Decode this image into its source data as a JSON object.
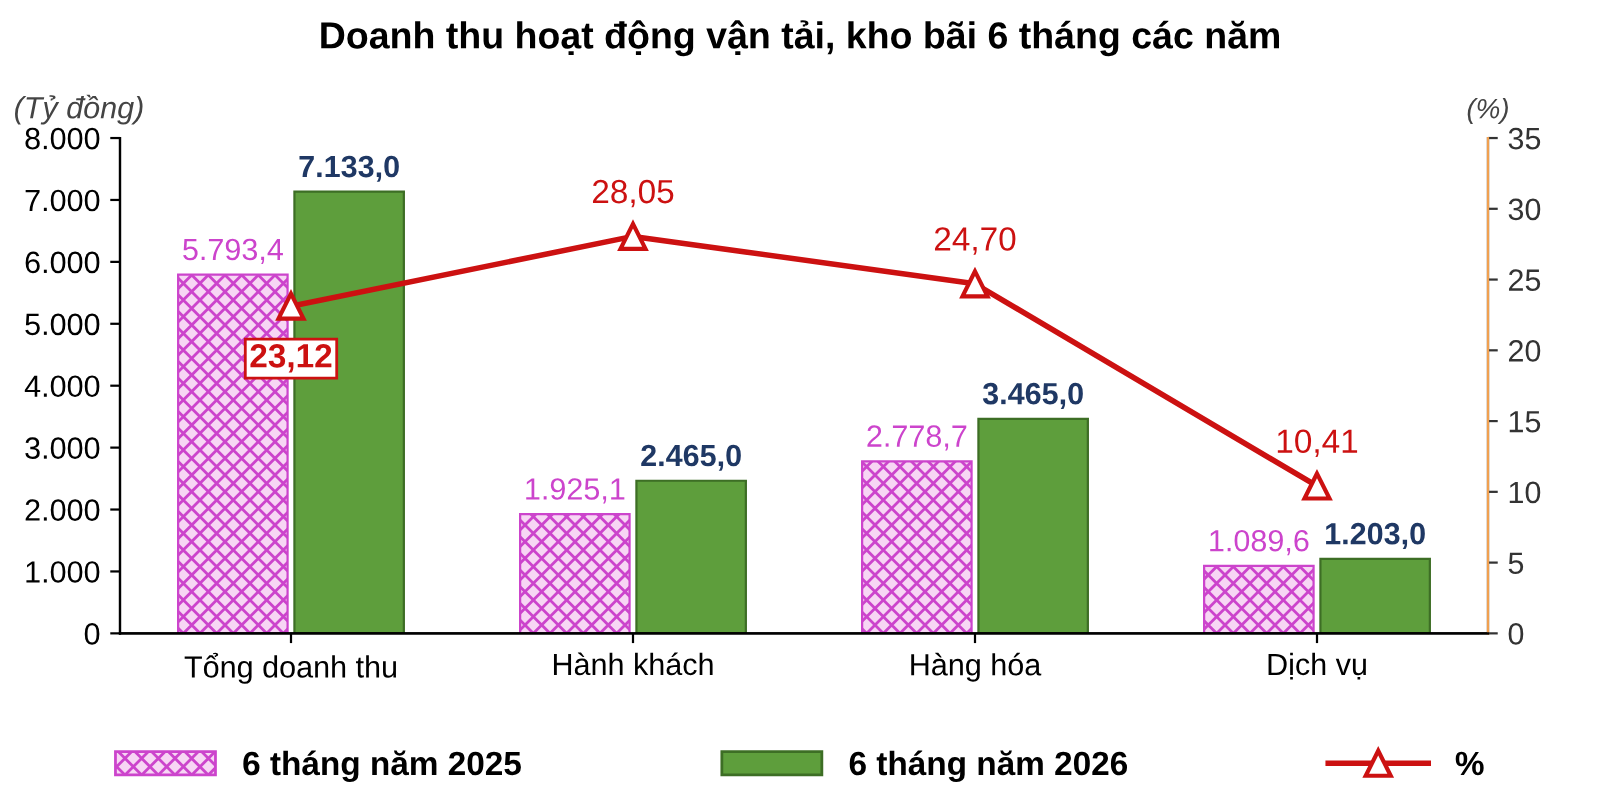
{
  "chart_data": {
    "type": "bar",
    "title": "Doanh thu hoạt động vận tải, kho bãi 6 tháng các năm",
    "ylabel": "(Tỷ đồng)",
    "y2label": "(%)",
    "categories": [
      "Tổng doanh thu",
      "Hành khách",
      "Hàng hóa",
      "Dịch vụ"
    ],
    "series": [
      {
        "name": "6 tháng năm 2025",
        "color": "#cc44cc",
        "values": [
          5793.4,
          1925.1,
          2778.7,
          1089.6
        ],
        "value_labels": [
          "5.793,4",
          "1.925,1",
          "2.778,7",
          "1.089,6"
        ]
      },
      {
        "name": "6 tháng năm 2026",
        "color": "#5e9e3c",
        "values": [
          7133.0,
          2465.0,
          3465.0,
          1203.0
        ],
        "value_labels": [
          "7.133,0",
          "2.465,0",
          "3.465,0",
          "1.203,0"
        ]
      },
      {
        "name": "%",
        "type": "line",
        "axis": "y2",
        "color": "#cc1111",
        "marker": "triangle",
        "values": [
          23.12,
          28.05,
          24.7,
          10.41
        ],
        "value_labels": [
          "23,12",
          "28,05",
          "24,70",
          "10,41"
        ]
      }
    ],
    "ylim": [
      0,
      8000
    ],
    "yticks": [
      0,
      {
        "value": 1000,
        "label": "1.000"
      },
      {
        "value": 2000,
        "label": "2.000"
      },
      {
        "value": 3000,
        "label": "3.000"
      },
      {
        "value": 4000,
        "label": "4.000"
      },
      {
        "value": 5000,
        "label": "5.000"
      },
      {
        "value": 6000,
        "label": "6.000"
      },
      {
        "value": 7000,
        "label": "7.000"
      },
      {
        "value": 8000,
        "label": "8.000"
      }
    ],
    "y2lim": [
      0,
      35
    ],
    "y2ticks": [
      0,
      5,
      10,
      15,
      20,
      25,
      30,
      35
    ],
    "legend": "bottom",
    "grid": false
  }
}
